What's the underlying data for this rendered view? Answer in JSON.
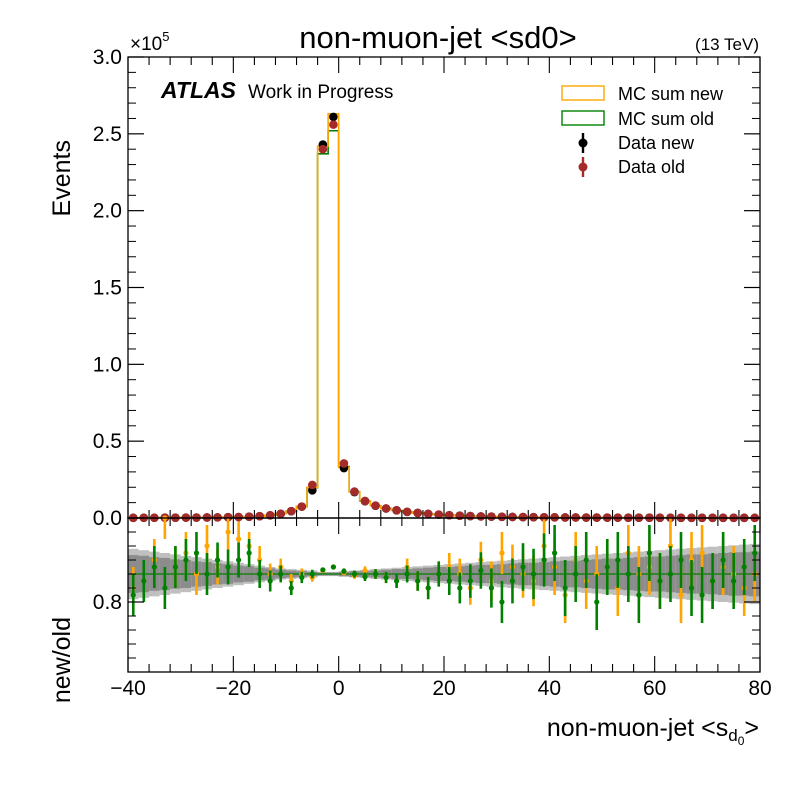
{
  "title": "non-muon-jet <sd0>",
  "energy_label": "(13 TeV)",
  "atlas_label": "ATLAS",
  "atlas_sublabel": "Work in Progress",
  "colors": {
    "mc_new": "#ffa500",
    "mc_old": "#008000",
    "data_new": "#000000",
    "data_old": "#a52a2a",
    "band_outer": "#bfbfbf",
    "band_inner": "#8c8c8c"
  },
  "chart_data": [
    {
      "type": "histogram",
      "panel": "main",
      "ylabel": "Events",
      "y_scale_label": "×10",
      "y_scale_exponent": "5",
      "xlim": [
        -40,
        80
      ],
      "ylim": [
        0,
        300000
      ],
      "y_ticks": [
        "0.0",
        "0.5",
        "1.0",
        "1.5",
        "2.0",
        "2.5",
        "3.0"
      ],
      "y_tick_values": [
        0,
        50000,
        100000,
        150000,
        200000,
        250000,
        300000
      ],
      "bin_edges": [
        -40,
        -38,
        -36,
        -34,
        -32,
        -30,
        -28,
        -26,
        -24,
        -22,
        -20,
        -18,
        -16,
        -14,
        -12,
        -10,
        -8,
        -6,
        -4,
        -2,
        0,
        2,
        4,
        6,
        8,
        10,
        12,
        14,
        16,
        18,
        20,
        22,
        24,
        26,
        28,
        30,
        32,
        34,
        36,
        38,
        40,
        42,
        44,
        46,
        48,
        50,
        52,
        54,
        56,
        58,
        60,
        62,
        64,
        66,
        68,
        70,
        72,
        74,
        76,
        78,
        80
      ],
      "legend_position": "top-right",
      "series": [
        {
          "name": "MC sum new",
          "kind": "step",
          "values": [
            150,
            160,
            180,
            200,
            230,
            260,
            300,
            350,
            420,
            520,
            650,
            850,
            1200,
            1800,
            2800,
            4500,
            7500,
            20000,
            242000,
            263000,
            33000,
            17000,
            11000,
            8000,
            6200,
            5000,
            4000,
            3300,
            2700,
            2200,
            1800,
            1500,
            1250,
            1050,
            900,
            780,
            680,
            600,
            530,
            470,
            420,
            380,
            340,
            310,
            280,
            255,
            235,
            215,
            200,
            185,
            172,
            160,
            150,
            140,
            131,
            123,
            116,
            109,
            103,
            97
          ]
        },
        {
          "name": "MC sum old",
          "kind": "step",
          "values": [
            148,
            158,
            178,
            198,
            228,
            258,
            297,
            347,
            417,
            516,
            646,
            845,
            1190,
            1790,
            2780,
            4470,
            7450,
            19800,
            237000,
            252000,
            33500,
            17100,
            11050,
            8030,
            6220,
            5010,
            4010,
            3300,
            2700,
            2200,
            1800,
            1500,
            1250,
            1050,
            900,
            780,
            680,
            600,
            530,
            470,
            420,
            380,
            340,
            310,
            280,
            255,
            235,
            215,
            200,
            185,
            172,
            160,
            150,
            140,
            131,
            123,
            116,
            109,
            103,
            97
          ]
        },
        {
          "name": "Data new",
          "kind": "points",
          "values": [
            140,
            150,
            170,
            190,
            220,
            250,
            290,
            340,
            410,
            510,
            640,
            840,
            1180,
            1770,
            2760,
            4440,
            7400,
            18000,
            243000,
            261000,
            32500,
            16900,
            10950,
            7980,
            6180,
            4990,
            3990,
            3290,
            2690,
            2190,
            1790,
            1490,
            1245,
            1045,
            895,
            775,
            675,
            595,
            525,
            465,
            415,
            375,
            335,
            305,
            275,
            250,
            230,
            210,
            195,
            180,
            168,
            156,
            146,
            136,
            127,
            119,
            112,
            105,
            99,
            93
          ]
        },
        {
          "name": "Data old",
          "kind": "points",
          "values": [
            145,
            155,
            175,
            195,
            225,
            255,
            295,
            345,
            415,
            515,
            645,
            845,
            1185,
            1775,
            2765,
            4445,
            7410,
            21500,
            240000,
            256000,
            35500,
            17200,
            11100,
            8050,
            6230,
            5020,
            4020,
            3310,
            2710,
            2210,
            1810,
            1510,
            1255,
            1055,
            905,
            785,
            685,
            605,
            535,
            475,
            425,
            385,
            345,
            315,
            285,
            260,
            240,
            220,
            205,
            190,
            177,
            165,
            155,
            145,
            135,
            127,
            120,
            113,
            107,
            101
          ]
        }
      ]
    },
    {
      "type": "ratio",
      "panel": "ratio",
      "ylabel": "new/old",
      "xlabel": "non-muon-jet <s",
      "xlabel_sub": "d",
      "xlabel_subsub": "0",
      "xlabel_end": ">",
      "xlim": [
        -40,
        80
      ],
      "ylim": [
        0.7,
        0.92
      ],
      "x_ticks": [
        "−40",
        "−20",
        "0",
        "20",
        "40",
        "60",
        "80"
      ],
      "x_tick_values": [
        -40,
        -20,
        0,
        20,
        40,
        60,
        80
      ],
      "y_ticks": [
        "0.8"
      ],
      "y_tick_values": [
        0.8
      ],
      "reference_line": 0.84,
      "band_outer": [
        0.036,
        0.034,
        0.032,
        0.03,
        0.028,
        0.026,
        0.024,
        0.022,
        0.02,
        0.018,
        0.016,
        0.014,
        0.012,
        0.01,
        0.008,
        0.007,
        0.006,
        0.005,
        0.003,
        0.003,
        0.004,
        0.005,
        0.006,
        0.007,
        0.008,
        0.009,
        0.01,
        0.011,
        0.012,
        0.013,
        0.014,
        0.015,
        0.016,
        0.017,
        0.018,
        0.019,
        0.02,
        0.021,
        0.022,
        0.023,
        0.024,
        0.025,
        0.026,
        0.027,
        0.028,
        0.029,
        0.03,
        0.031,
        0.032,
        0.033,
        0.034,
        0.035,
        0.036,
        0.037,
        0.038,
        0.039,
        0.04,
        0.041,
        0.042,
        0.043
      ],
      "band_inner": [
        0.027,
        0.026,
        0.024,
        0.023,
        0.021,
        0.02,
        0.018,
        0.017,
        0.015,
        0.014,
        0.012,
        0.011,
        0.009,
        0.008,
        0.006,
        0.005,
        0.004,
        0.003,
        0.002,
        0.002,
        0.003,
        0.004,
        0.004,
        0.005,
        0.006,
        0.007,
        0.007,
        0.008,
        0.009,
        0.01,
        0.01,
        0.011,
        0.012,
        0.013,
        0.013,
        0.014,
        0.015,
        0.016,
        0.016,
        0.017,
        0.018,
        0.019,
        0.019,
        0.02,
        0.021,
        0.022,
        0.022,
        0.023,
        0.024,
        0.025,
        0.025,
        0.026,
        0.027,
        0.028,
        0.028,
        0.029,
        0.03,
        0.031,
        0.031,
        0.032
      ],
      "series": [
        {
          "name": "MC sum new / MC sum old",
          "color_key": "mc_new",
          "values": [
            0.82,
            0.83,
            0.86,
            0.92,
            0.85,
            0.87,
            0.84,
            0.88,
            0.85,
            0.9,
            0.89,
            0.88,
            0.86,
            0.84,
            0.85,
            0.83,
            0.84,
            0.835,
            0.845,
            0.85,
            0.842,
            0.838,
            0.845,
            0.84,
            0.835,
            0.83,
            0.85,
            0.83,
            0.82,
            0.84,
            0.85,
            0.84,
            0.82,
            0.86,
            0.83,
            0.87,
            0.85,
            0.84,
            0.83,
            0.88,
            0.85,
            0.81,
            0.86,
            0.83,
            0.84,
            0.85,
            0.82,
            0.87,
            0.84,
            0.85,
            0.83,
            0.88,
            0.81,
            0.86,
            0.87,
            0.83,
            0.85,
            0.84,
            0.82,
            0.84
          ],
          "errors": [
            0.03,
            0.03,
            0.03,
            0.03,
            0.03,
            0.03,
            0.03,
            0.03,
            0.025,
            0.025,
            0.025,
            0.02,
            0.02,
            0.015,
            0.012,
            0.01,
            0.008,
            0.006,
            0.003,
            0.003,
            0.004,
            0.005,
            0.006,
            0.007,
            0.008,
            0.01,
            0.012,
            0.014,
            0.016,
            0.018,
            0.02,
            0.022,
            0.024,
            0.026,
            0.028,
            0.03,
            0.032,
            0.034,
            0.036,
            0.038,
            0.04,
            0.04,
            0.04,
            0.04,
            0.04,
            0.04,
            0.04,
            0.04,
            0.04,
            0.04,
            0.04,
            0.04,
            0.04,
            0.04,
            0.04,
            0.04,
            0.04,
            0.04,
            0.04,
            0.04
          ]
        },
        {
          "name": "Data new / Data old",
          "color_key": "mc_old",
          "values": [
            0.81,
            0.83,
            0.85,
            0.82,
            0.85,
            0.86,
            0.87,
            0.84,
            0.86,
            0.85,
            0.86,
            0.87,
            0.84,
            0.83,
            0.84,
            0.82,
            0.835,
            0.84,
            0.846,
            0.85,
            0.844,
            0.84,
            0.836,
            0.84,
            0.835,
            0.83,
            0.84,
            0.83,
            0.82,
            0.84,
            0.83,
            0.82,
            0.83,
            0.845,
            0.82,
            0.8,
            0.83,
            0.85,
            0.84,
            0.86,
            0.87,
            0.82,
            0.84,
            0.86,
            0.8,
            0.85,
            0.86,
            0.84,
            0.81,
            0.87,
            0.83,
            0.84,
            0.86,
            0.82,
            0.81,
            0.83,
            0.86,
            0.83,
            0.85,
            0.87
          ],
          "errors": [
            0.03,
            0.03,
            0.03,
            0.03,
            0.03,
            0.03,
            0.03,
            0.03,
            0.025,
            0.025,
            0.025,
            0.02,
            0.02,
            0.015,
            0.012,
            0.01,
            0.008,
            0.006,
            0.003,
            0.003,
            0.004,
            0.005,
            0.006,
            0.007,
            0.008,
            0.01,
            0.012,
            0.014,
            0.016,
            0.018,
            0.02,
            0.022,
            0.024,
            0.026,
            0.028,
            0.03,
            0.032,
            0.034,
            0.036,
            0.038,
            0.04,
            0.04,
            0.04,
            0.04,
            0.04,
            0.04,
            0.04,
            0.04,
            0.04,
            0.04,
            0.04,
            0.04,
            0.04,
            0.04,
            0.04,
            0.04,
            0.04,
            0.04,
            0.04,
            0.04
          ]
        }
      ]
    }
  ]
}
